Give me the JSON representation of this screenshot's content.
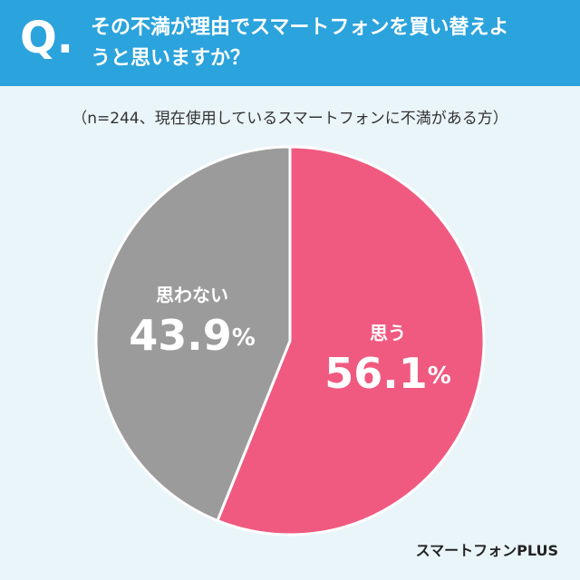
{
  "chart_data": {
    "type": "pie",
    "question_label": "Q.",
    "title": "その不満が理由でスマートフォンを買い替えようと思いますか？",
    "subtitle": "（n=244、現在使用しているスマートフォンに不満がある方）",
    "categories": [
      "思う",
      "思わない"
    ],
    "values": [
      56.1,
      43.9
    ],
    "value_labels": [
      "56.1%",
      "43.9%"
    ],
    "colors": [
      "#f05a80",
      "#9b9b9b"
    ],
    "source": "スマートフォンPLUS"
  }
}
